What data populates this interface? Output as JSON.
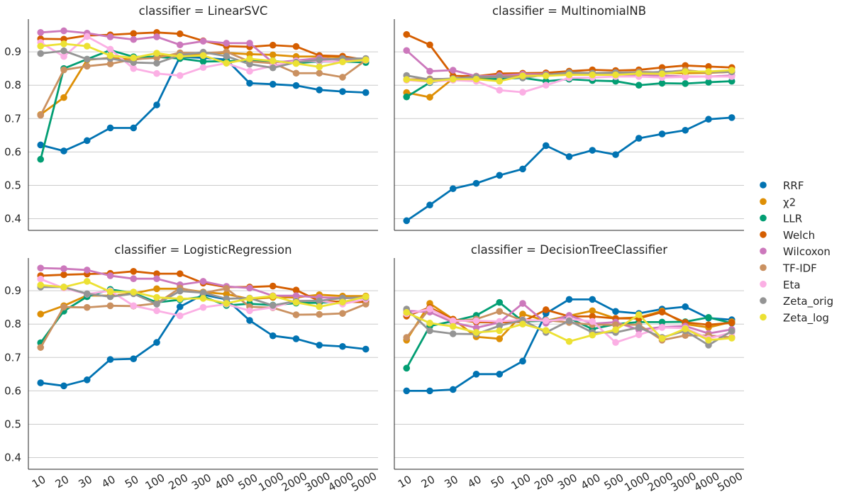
{
  "chart_data": {
    "type": "line",
    "facet_var": "classifier",
    "categories": [
      "10",
      "20",
      "30",
      "40",
      "50",
      "100",
      "200",
      "300",
      "400",
      "500",
      "1000",
      "2000",
      "3000",
      "4000",
      "5000"
    ],
    "yticks": [
      "0.4",
      "0.5",
      "0.6",
      "0.7",
      "0.8",
      "0.9"
    ],
    "ylim": [
      0.365,
      0.998
    ],
    "grid": "horizontal",
    "legend_position": "right",
    "colors": {
      "RRF": "#0173b2",
      "χ2": "#de8f05",
      "LLR": "#029e73",
      "Welch": "#d55e00",
      "Wilcoxon": "#cc78bc",
      "TF-IDF": "#ca9161",
      "Eta": "#fbafe4",
      "Zeta_orig": "#949494",
      "Zeta_log": "#ece133"
    },
    "legend": [
      "RRF",
      "χ2",
      "LLR",
      "Welch",
      "Wilcoxon",
      "TF-IDF",
      "Eta",
      "Zeta_orig",
      "Zeta_log"
    ],
    "facets": [
      {
        "title": "classifier = LinearSVC",
        "series": [
          {
            "name": "RRF",
            "values": [
              0.621,
              0.603,
              0.634,
              0.672,
              0.672,
              0.741,
              0.885,
              0.882,
              0.877,
              0.806,
              0.803,
              0.799,
              0.786,
              0.781,
              0.778
            ]
          },
          {
            "name": "χ2",
            "values": [
              0.712,
              0.763,
              0.876,
              0.882,
              0.876,
              0.887,
              0.89,
              0.895,
              0.897,
              0.893,
              0.891,
              0.886,
              0.886,
              0.884,
              0.876
            ]
          },
          {
            "name": "LLR",
            "values": [
              0.578,
              0.85,
              0.878,
              0.905,
              0.885,
              0.885,
              0.88,
              0.871,
              0.872,
              0.874,
              0.873,
              0.866,
              0.871,
              0.871,
              0.868
            ]
          },
          {
            "name": "Welch",
            "values": [
              0.939,
              0.938,
              0.949,
              0.951,
              0.955,
              0.958,
              0.954,
              0.933,
              0.917,
              0.915,
              0.92,
              0.916,
              0.889,
              0.887,
              0.876
            ]
          },
          {
            "name": "Wilcoxon",
            "values": [
              0.958,
              0.963,
              0.956,
              0.945,
              0.937,
              0.945,
              0.921,
              0.932,
              0.926,
              0.926,
              0.868,
              0.874,
              0.881,
              0.876,
              0.876
            ]
          },
          {
            "name": "TF-IDF",
            "values": [
              0.71,
              0.846,
              0.857,
              0.864,
              0.878,
              0.882,
              0.897,
              0.896,
              0.9,
              0.871,
              0.866,
              0.836,
              0.836,
              0.824,
              0.875
            ]
          },
          {
            "name": "Eta",
            "values": [
              0.928,
              0.886,
              0.946,
              0.908,
              0.85,
              0.835,
              0.829,
              0.853,
              0.866,
              0.842,
              0.858,
              0.872,
              0.872,
              0.87,
              0.875
            ]
          },
          {
            "name": "Zeta_orig",
            "values": [
              0.895,
              0.903,
              0.878,
              0.88,
              0.868,
              0.866,
              0.89,
              0.899,
              0.887,
              0.863,
              0.852,
              0.869,
              0.876,
              0.88,
              0.88
            ]
          },
          {
            "name": "Zeta_log",
            "values": [
              0.917,
              0.924,
              0.917,
              0.889,
              0.882,
              0.896,
              0.886,
              0.889,
              0.866,
              0.879,
              0.873,
              0.865,
              0.855,
              0.87,
              0.876
            ]
          }
        ]
      },
      {
        "title": "classifier = MultinomialNB",
        "series": [
          {
            "name": "RRF",
            "values": [
              0.394,
              0.441,
              0.49,
              0.506,
              0.53,
              0.549,
              0.619,
              0.586,
              0.605,
              0.592,
              0.641,
              0.654,
              0.665,
              0.698,
              0.703
            ]
          },
          {
            "name": "χ2",
            "values": [
              0.778,
              0.764,
              0.82,
              0.819,
              0.827,
              0.83,
              0.832,
              0.836,
              0.836,
              0.833,
              0.838,
              0.836,
              0.836,
              0.837,
              0.84
            ]
          },
          {
            "name": "LLR",
            "values": [
              0.765,
              0.808,
              0.819,
              0.817,
              0.819,
              0.822,
              0.812,
              0.818,
              0.814,
              0.812,
              0.8,
              0.806,
              0.805,
              0.809,
              0.812
            ]
          },
          {
            "name": "Welch",
            "values": [
              0.952,
              0.921,
              0.828,
              0.827,
              0.835,
              0.836,
              0.837,
              0.842,
              0.846,
              0.844,
              0.846,
              0.853,
              0.859,
              0.856,
              0.853
            ]
          },
          {
            "name": "Wilcoxon",
            "values": [
              0.904,
              0.842,
              0.845,
              0.827,
              0.829,
              0.833,
              0.833,
              0.831,
              0.832,
              0.832,
              0.831,
              0.829,
              0.826,
              0.826,
              0.829
            ]
          },
          {
            "name": "TF-IDF",
            "values": [
              0.817,
              0.819,
              0.818,
              0.825,
              0.825,
              0.828,
              0.831,
              0.833,
              0.836,
              0.837,
              0.84,
              0.838,
              0.845,
              0.838,
              0.84
            ]
          },
          {
            "name": "Eta",
            "values": [
              0.815,
              0.81,
              0.815,
              0.812,
              0.785,
              0.779,
              0.8,
              0.822,
              0.823,
              0.826,
              0.826,
              0.823,
              0.825,
              0.826,
              0.826
            ]
          },
          {
            "name": "Zeta_orig",
            "values": [
              0.829,
              0.817,
              0.82,
              0.825,
              0.825,
              0.822,
              0.831,
              0.838,
              0.836,
              0.838,
              0.837,
              0.84,
              0.842,
              0.84,
              0.84
            ]
          },
          {
            "name": "Zeta_log",
            "values": [
              0.817,
              0.812,
              0.818,
              0.818,
              0.812,
              0.828,
              0.828,
              0.831,
              0.831,
              0.831,
              0.835,
              0.834,
              0.841,
              0.841,
              0.845
            ]
          }
        ]
      },
      {
        "title": "classifier = LogisticRegression",
        "series": [
          {
            "name": "RRF",
            "values": [
              0.624,
              0.615,
              0.633,
              0.694,
              0.696,
              0.745,
              0.852,
              0.888,
              0.874,
              0.811,
              0.765,
              0.756,
              0.737,
              0.733,
              0.725
            ]
          },
          {
            "name": "χ2",
            "values": [
              0.83,
              0.855,
              0.886,
              0.885,
              0.892,
              0.906,
              0.906,
              0.896,
              0.89,
              0.875,
              0.88,
              0.88,
              0.888,
              0.884,
              0.884
            ]
          },
          {
            "name": "LLR",
            "values": [
              0.744,
              0.839,
              0.882,
              0.904,
              0.893,
              0.865,
              0.873,
              0.882,
              0.856,
              0.861,
              0.857,
              0.863,
              0.864,
              0.868,
              0.868
            ]
          },
          {
            "name": "Welch",
            "values": [
              0.945,
              0.948,
              0.95,
              0.952,
              0.958,
              0.951,
              0.951,
              0.923,
              0.911,
              0.911,
              0.914,
              0.902,
              0.869,
              0.867,
              0.866
            ]
          },
          {
            "name": "Wilcoxon",
            "values": [
              0.968,
              0.966,
              0.962,
              0.945,
              0.936,
              0.936,
              0.918,
              0.928,
              0.913,
              0.908,
              0.885,
              0.885,
              0.88,
              0.878,
              0.878
            ]
          },
          {
            "name": "TF-IDF",
            "values": [
              0.73,
              0.851,
              0.85,
              0.855,
              0.854,
              0.862,
              0.908,
              0.893,
              0.907,
              0.852,
              0.849,
              0.828,
              0.829,
              0.832,
              0.86
            ]
          },
          {
            "name": "Eta",
            "values": [
              0.935,
              0.908,
              0.89,
              0.9,
              0.855,
              0.84,
              0.825,
              0.85,
              0.86,
              0.84,
              0.85,
              0.87,
              0.87,
              0.86,
              0.875
            ]
          },
          {
            "name": "Zeta_orig",
            "values": [
              0.911,
              0.911,
              0.891,
              0.882,
              0.891,
              0.86,
              0.899,
              0.894,
              0.876,
              0.878,
              0.856,
              0.869,
              0.87,
              0.878,
              0.88
            ]
          },
          {
            "name": "Zeta_log",
            "values": [
              0.917,
              0.911,
              0.928,
              0.897,
              0.896,
              0.88,
              0.876,
              0.877,
              0.862,
              0.877,
              0.884,
              0.865,
              0.852,
              0.866,
              0.882
            ]
          }
        ]
      },
      {
        "title": "classifier = DecisionTreeClassifier",
        "series": [
          {
            "name": "RRF",
            "values": [
              0.6,
              0.6,
              0.604,
              0.65,
              0.65,
              0.689,
              0.832,
              0.874,
              0.874,
              0.838,
              0.832,
              0.845,
              0.852,
              0.818,
              0.813
            ]
          },
          {
            "name": "χ2",
            "values": [
              0.752,
              0.862,
              0.815,
              0.762,
              0.756,
              0.83,
              0.81,
              0.825,
              0.84,
              0.817,
              0.82,
              0.839,
              0.8,
              0.79,
              0.807
            ]
          },
          {
            "name": "LLR",
            "values": [
              0.668,
              0.794,
              0.809,
              0.826,
              0.865,
              0.808,
              0.81,
              0.818,
              0.785,
              0.8,
              0.806,
              0.806,
              0.807,
              0.82,
              0.803
            ]
          },
          {
            "name": "Welch",
            "values": [
              0.824,
              0.85,
              0.814,
              0.806,
              0.805,
              0.807,
              0.843,
              0.823,
              0.823,
              0.817,
              0.817,
              0.836,
              0.805,
              0.798,
              0.804
            ]
          },
          {
            "name": "Wilcoxon",
            "values": [
              0.84,
              0.836,
              0.805,
              0.789,
              0.805,
              0.862,
              0.803,
              0.826,
              0.801,
              0.806,
              0.783,
              0.791,
              0.794,
              0.772,
              0.784
            ]
          },
          {
            "name": "TF-IDF",
            "values": [
              0.76,
              0.847,
              0.808,
              0.815,
              0.838,
              0.81,
              0.812,
              0.805,
              0.798,
              0.798,
              0.798,
              0.752,
              0.766,
              0.766,
              0.76
            ]
          },
          {
            "name": "Eta",
            "values": [
              0.831,
              0.845,
              0.81,
              0.81,
              0.808,
              0.813,
              0.81,
              0.815,
              0.808,
              0.745,
              0.768,
              0.79,
              0.788,
              0.757,
              0.775
            ]
          },
          {
            "name": "Zeta_orig",
            "values": [
              0.845,
              0.78,
              0.771,
              0.77,
              0.795,
              0.812,
              0.775,
              0.81,
              0.775,
              0.775,
              0.79,
              0.76,
              0.78,
              0.737,
              0.779
            ]
          },
          {
            "name": "Zeta_log",
            "values": [
              0.835,
              0.803,
              0.793,
              0.775,
              0.78,
              0.8,
              0.781,
              0.748,
              0.767,
              0.783,
              0.828,
              0.757,
              0.786,
              0.752,
              0.758
            ]
          }
        ]
      }
    ]
  }
}
